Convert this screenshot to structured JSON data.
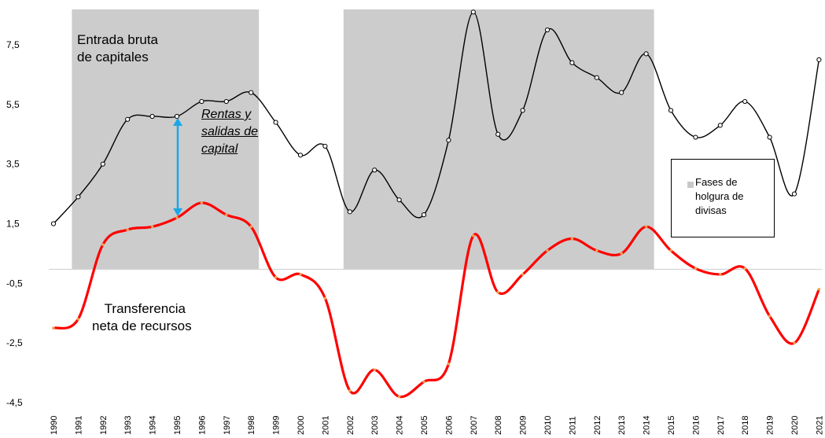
{
  "chart_data": {
    "type": "line",
    "years": [
      "1990",
      "1991",
      "1992",
      "1993",
      "1994",
      "1995",
      "1996",
      "1997",
      "1998",
      "1999",
      "2000",
      "2001",
      "2002",
      "2003",
      "2004",
      "2005",
      "2006",
      "2007",
      "2008",
      "2009",
      "2010",
      "2011",
      "2012",
      "2013",
      "2014",
      "2015",
      "2016",
      "2017",
      "2018",
      "2019",
      "2020",
      "2021"
    ],
    "yticks": [
      "7,5",
      "5,5",
      "3,5",
      "1,5",
      "-0,5",
      "-2,5",
      "-4,5"
    ],
    "ylim": [
      -4.5,
      8.5
    ],
    "series": [
      {
        "name": "Entrada bruta de capitales",
        "color": "#000000",
        "values": [
          1.5,
          2.4,
          3.5,
          5.0,
          5.1,
          5.1,
          5.6,
          5.6,
          5.9,
          4.9,
          3.8,
          4.1,
          1.9,
          3.3,
          2.3,
          1.8,
          4.3,
          8.6,
          4.5,
          5.3,
          8.0,
          6.9,
          6.4,
          5.9,
          7.2,
          5.3,
          4.4,
          4.8,
          5.6,
          4.4,
          2.5,
          7.0
        ]
      },
      {
        "name": "Transferencia neta de recursos",
        "color": "#ff0000",
        "values": [
          -2.0,
          -1.7,
          0.8,
          1.3,
          1.4,
          1.7,
          2.2,
          1.8,
          1.4,
          -0.3,
          -0.2,
          -1.0,
          -4.1,
          -3.4,
          -4.3,
          -3.8,
          -3.2,
          1.1,
          -0.8,
          -0.2,
          0.6,
          1.0,
          0.6,
          0.5,
          1.4,
          0.6,
          0.0,
          -0.2,
          0.0,
          -1.6,
          -2.5,
          -0.7
        ]
      }
    ],
    "shaded_periods": [
      [
        "1991",
        "1998"
      ],
      [
        "2002",
        "2014"
      ]
    ],
    "annotations": {
      "entrada_label_line1": "Entrada bruta",
      "entrada_label_line2": "de capitales",
      "transferencia_label_line1": "Transferencia",
      "transferencia_label_line2": "neta de recursos",
      "rentas_line1": "Rentas y",
      "rentas_line2": "salidas de",
      "rentas_line3": "capital"
    },
    "legend": {
      "text": "Fases de holgura de divisas",
      "swatch_color": "#c8c8c8",
      "position": "right"
    },
    "arrow_color": "#1aa7e8",
    "grid": false
  }
}
